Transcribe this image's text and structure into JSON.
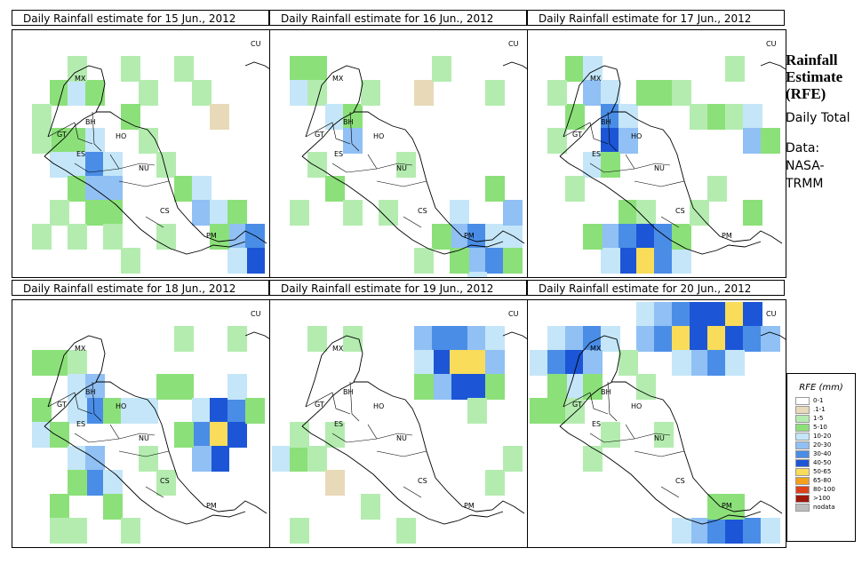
{
  "panels": [
    {
      "title": "Daily Rainfall estimate for  15 Jun., 2012",
      "cells": [
        [
          2,
          4,
          3
        ],
        [
          2,
          5,
          4
        ],
        [
          3,
          4,
          3
        ],
        [
          3,
          5,
          4
        ],
        [
          3,
          6,
          3
        ],
        [
          4,
          4,
          4
        ],
        [
          4,
          5,
          6
        ],
        [
          4,
          6,
          5
        ],
        [
          4,
          7,
          3
        ],
        [
          5,
          5,
          4
        ],
        [
          5,
          6,
          5
        ],
        [
          5,
          7,
          3
        ],
        [
          3,
          8,
          2
        ],
        [
          2,
          2,
          3
        ],
        [
          3,
          2,
          4
        ],
        [
          4,
          2,
          3
        ],
        [
          6,
          1,
          2
        ],
        [
          7,
          2,
          2
        ],
        [
          6,
          3,
          3
        ],
        [
          7,
          4,
          2
        ],
        [
          8,
          5,
          2
        ],
        [
          9,
          6,
          3
        ],
        [
          10,
          6,
          4
        ],
        [
          10,
          7,
          5
        ],
        [
          11,
          7,
          4
        ],
        [
          12,
          7,
          3
        ],
        [
          12,
          8,
          5
        ],
        [
          13,
          8,
          6
        ],
        [
          13,
          9,
          7
        ],
        [
          12,
          9,
          4
        ],
        [
          11,
          8,
          3
        ],
        [
          1,
          3,
          2
        ],
        [
          1,
          4,
          2
        ],
        [
          2,
          7,
          2
        ],
        [
          5,
          8,
          2
        ],
        [
          9,
          1,
          2
        ],
        [
          10,
          2,
          2
        ],
        [
          11,
          3,
          1
        ],
        [
          8,
          8,
          2
        ],
        [
          6,
          9,
          2
        ],
        [
          1,
          8,
          2
        ],
        [
          3,
          1,
          2
        ]
      ]
    },
    {
      "title": "Daily Rainfall estimate for  16 Jun., 2012",
      "cells": [
        [
          1,
          1,
          3
        ],
        [
          1,
          2,
          4
        ],
        [
          2,
          1,
          3
        ],
        [
          2,
          2,
          2
        ],
        [
          3,
          3,
          4
        ],
        [
          4,
          3,
          3
        ],
        [
          4,
          4,
          5
        ],
        [
          2,
          5,
          2
        ],
        [
          3,
          6,
          3
        ],
        [
          4,
          7,
          2
        ],
        [
          5,
          2,
          2
        ],
        [
          10,
          7,
          4
        ],
        [
          10,
          8,
          5
        ],
        [
          11,
          8,
          6
        ],
        [
          12,
          8,
          4
        ],
        [
          11,
          9,
          5
        ],
        [
          12,
          9,
          6
        ],
        [
          13,
          8,
          4
        ],
        [
          13,
          7,
          5
        ],
        [
          12,
          6,
          3
        ],
        [
          9,
          8,
          3
        ],
        [
          8,
          9,
          2
        ],
        [
          11,
          10,
          4
        ],
        [
          10,
          9,
          3
        ],
        [
          13,
          9,
          3
        ],
        [
          7,
          5,
          2
        ],
        [
          6,
          7,
          2
        ],
        [
          1,
          7,
          2
        ],
        [
          8,
          2,
          1
        ],
        [
          9,
          1,
          2
        ],
        [
          12,
          2,
          2
        ]
      ]
    },
    {
      "title": "Daily Rainfall estimate for  17 Jun., 2012",
      "cells": [
        [
          2,
          1,
          3
        ],
        [
          3,
          1,
          4
        ],
        [
          3,
          2,
          5
        ],
        [
          4,
          2,
          4
        ],
        [
          4,
          3,
          6
        ],
        [
          4,
          4,
          7
        ],
        [
          5,
          3,
          4
        ],
        [
          5,
          4,
          5
        ],
        [
          2,
          3,
          3
        ],
        [
          1,
          4,
          2
        ],
        [
          3,
          5,
          4
        ],
        [
          4,
          5,
          3
        ],
        [
          6,
          2,
          3
        ],
        [
          7,
          2,
          3
        ],
        [
          8,
          2,
          2
        ],
        [
          9,
          3,
          2
        ],
        [
          10,
          3,
          3
        ],
        [
          11,
          3,
          2
        ],
        [
          12,
          3,
          4
        ],
        [
          12,
          4,
          5
        ],
        [
          13,
          4,
          3
        ],
        [
          5,
          7,
          3
        ],
        [
          6,
          7,
          2
        ],
        [
          4,
          8,
          5
        ],
        [
          5,
          8,
          6
        ],
        [
          6,
          8,
          7
        ],
        [
          7,
          8,
          6
        ],
        [
          5,
          9,
          7
        ],
        [
          6,
          9,
          8
        ],
        [
          7,
          9,
          6
        ],
        [
          8,
          9,
          4
        ],
        [
          8,
          8,
          3
        ],
        [
          4,
          9,
          4
        ],
        [
          3,
          8,
          3
        ],
        [
          9,
          7,
          2
        ],
        [
          1,
          2,
          2
        ],
        [
          11,
          1,
          2
        ],
        [
          10,
          6,
          2
        ],
        [
          12,
          7,
          3
        ],
        [
          2,
          6,
          2
        ]
      ]
    },
    {
      "title": "Daily Rainfall estimate for  18 Jun., 2012",
      "cells": [
        [
          1,
          2,
          3
        ],
        [
          2,
          2,
          3
        ],
        [
          3,
          2,
          2
        ],
        [
          3,
          3,
          4
        ],
        [
          4,
          3,
          5
        ],
        [
          4,
          4,
          6
        ],
        [
          3,
          4,
          4
        ],
        [
          5,
          4,
          3
        ],
        [
          6,
          4,
          4
        ],
        [
          7,
          4,
          4
        ],
        [
          8,
          3,
          3
        ],
        [
          9,
          3,
          3
        ],
        [
          1,
          4,
          3
        ],
        [
          1,
          5,
          4
        ],
        [
          2,
          5,
          3
        ],
        [
          3,
          6,
          4
        ],
        [
          4,
          6,
          5
        ],
        [
          4,
          7,
          6
        ],
        [
          5,
          7,
          4
        ],
        [
          3,
          7,
          3
        ],
        [
          5,
          8,
          3
        ],
        [
          2,
          8,
          3
        ],
        [
          3,
          9,
          2
        ],
        [
          10,
          4,
          4
        ],
        [
          10,
          5,
          6
        ],
        [
          11,
          4,
          7
        ],
        [
          11,
          5,
          8
        ],
        [
          11,
          6,
          7
        ],
        [
          12,
          4,
          6
        ],
        [
          12,
          5,
          7
        ],
        [
          10,
          6,
          5
        ],
        [
          12,
          3,
          4
        ],
        [
          9,
          5,
          3
        ],
        [
          13,
          4,
          3
        ],
        [
          7,
          6,
          2
        ],
        [
          8,
          7,
          2
        ],
        [
          6,
          9,
          2
        ],
        [
          2,
          9,
          2
        ],
        [
          9,
          1,
          2
        ],
        [
          12,
          1,
          2
        ]
      ]
    },
    {
      "title": "Daily Rainfall estimate for  19 Jun., 2012",
      "cells": [
        [
          8,
          1,
          5
        ],
        [
          9,
          1,
          6
        ],
        [
          10,
          1,
          6
        ],
        [
          11,
          1,
          5
        ],
        [
          12,
          1,
          4
        ],
        [
          9,
          2,
          7
        ],
        [
          10,
          2,
          8
        ],
        [
          11,
          2,
          8
        ],
        [
          10,
          3,
          7
        ],
        [
          11,
          3,
          7
        ],
        [
          9,
          3,
          5
        ],
        [
          8,
          2,
          4
        ],
        [
          12,
          2,
          5
        ],
        [
          8,
          3,
          3
        ],
        [
          12,
          3,
          3
        ],
        [
          11,
          4,
          2
        ],
        [
          0,
          6,
          4
        ],
        [
          1,
          6,
          3
        ],
        [
          1,
          5,
          2
        ],
        [
          2,
          6,
          2
        ],
        [
          3,
          5,
          2
        ],
        [
          3,
          7,
          1
        ],
        [
          5,
          8,
          2
        ],
        [
          7,
          9,
          2
        ],
        [
          1,
          9,
          2
        ],
        [
          2,
          1,
          2
        ],
        [
          4,
          1,
          2
        ],
        [
          12,
          7,
          2
        ],
        [
          13,
          6,
          2
        ]
      ]
    },
    {
      "title": "Daily Rainfall estimate for  20 Jun., 2012",
      "cells": [
        [
          1,
          1,
          4
        ],
        [
          2,
          1,
          5
        ],
        [
          3,
          1,
          6
        ],
        [
          4,
          1,
          4
        ],
        [
          0,
          2,
          4
        ],
        [
          1,
          2,
          6
        ],
        [
          2,
          2,
          7
        ],
        [
          3,
          2,
          5
        ],
        [
          2,
          3,
          4
        ],
        [
          1,
          3,
          3
        ],
        [
          0,
          4,
          3
        ],
        [
          1,
          4,
          3
        ],
        [
          2,
          4,
          2
        ],
        [
          3,
          3,
          3
        ],
        [
          6,
          0,
          4
        ],
        [
          7,
          0,
          5
        ],
        [
          8,
          0,
          6
        ],
        [
          9,
          0,
          7
        ],
        [
          10,
          0,
          7
        ],
        [
          11,
          0,
          8
        ],
        [
          12,
          0,
          7
        ],
        [
          6,
          1,
          5
        ],
        [
          7,
          1,
          6
        ],
        [
          8,
          1,
          8
        ],
        [
          9,
          1,
          7
        ],
        [
          10,
          1,
          8
        ],
        [
          11,
          1,
          7
        ],
        [
          12,
          1,
          6
        ],
        [
          13,
          1,
          5
        ],
        [
          9,
          2,
          5
        ],
        [
          10,
          2,
          6
        ],
        [
          8,
          2,
          4
        ],
        [
          11,
          2,
          4
        ],
        [
          3,
          6,
          2
        ],
        [
          4,
          5,
          2
        ],
        [
          7,
          5,
          2
        ],
        [
          9,
          9,
          5
        ],
        [
          10,
          9,
          6
        ],
        [
          11,
          9,
          7
        ],
        [
          12,
          9,
          6
        ],
        [
          8,
          9,
          4
        ],
        [
          13,
          9,
          4
        ],
        [
          10,
          8,
          3
        ],
        [
          11,
          8,
          3
        ],
        [
          5,
          2,
          2
        ],
        [
          6,
          3,
          2
        ]
      ]
    }
  ],
  "countries": [
    "MX",
    "BH",
    "GT",
    "HO",
    "ES",
    "NU",
    "CS",
    "PM",
    "CU"
  ],
  "side_title": "Rainfall Estimate (RFE)",
  "side_daily": "Daily Total",
  "side_data": "Data: NASA- TRMM",
  "legend": {
    "title": "RFE (mm)",
    "bins": [
      {
        "label": "0-1",
        "color": "#ffffff"
      },
      {
        "label": ".1-1",
        "color": "#e8d9b8"
      },
      {
        "label": "1-5",
        "color": "#b4ecb0"
      },
      {
        "label": "5-10",
        "color": "#8ce07a"
      },
      {
        "label": "10-20",
        "color": "#c4e6f8"
      },
      {
        "label": "20-30",
        "color": "#90c0f4"
      },
      {
        "label": "30-40",
        "color": "#4a8de6"
      },
      {
        "label": "40-50",
        "color": "#1c56d6"
      },
      {
        "label": "50-65",
        "color": "#f8dc5a"
      },
      {
        "label": "65-80",
        "color": "#f4a01c"
      },
      {
        "label": "80-100",
        "color": "#e0401a"
      },
      {
        ">100": ">100",
        "label": ">100",
        "color": "#a01808"
      },
      {
        "label": "nodata",
        "color": "#bcbcbc"
      }
    ]
  }
}
